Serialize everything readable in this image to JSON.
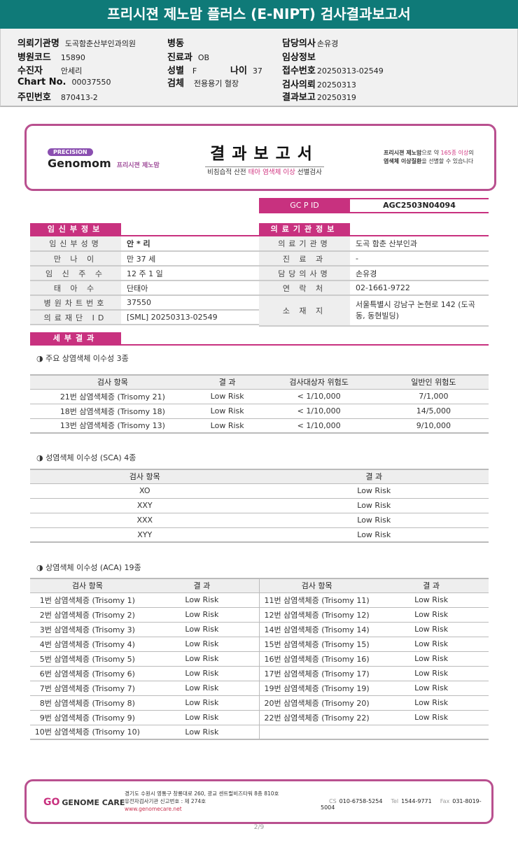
{
  "title": "프리시젼 제노맘 플러스 (E-NIPT) 검사결과보고서",
  "info": {
    "institution": {
      "label": "의뢰기관명",
      "value": "도곡함춘산부인과의원"
    },
    "hospital_code": {
      "label": "병원코드",
      "value": "15890"
    },
    "patient": {
      "label": "수진자",
      "value": "안세리"
    },
    "chart_no": {
      "label": "Chart No.",
      "value": "00037550"
    },
    "resident_no": {
      "label": "주민번호",
      "value": "870413-2"
    },
    "ward": {
      "label": "병동",
      "value": ""
    },
    "department": {
      "label": "진료과",
      "value": "OB"
    },
    "sex": {
      "label": "성별",
      "value": "F"
    },
    "age": {
      "label": "나이",
      "value": "37"
    },
    "specimen": {
      "label": "검체",
      "value": "전용용기 혈장"
    },
    "doctor": {
      "label": "담당의사",
      "value": "손유경"
    },
    "clinical": {
      "label": "임상정보",
      "value": ""
    },
    "receipt_no": {
      "label": "접수번호",
      "value": "20250313-02549"
    },
    "request_date": {
      "label": "검사의뢰",
      "value": "20250313"
    },
    "report_date": {
      "label": "결과보고",
      "value": "20250319"
    }
  },
  "banner": {
    "precision": "PRECISION",
    "brand": "Genomom",
    "brand_kr": "프리시젼 제노맘",
    "title": "결과보고서",
    "subtitle_pre": "비침습적 산전 ",
    "subtitle_em": "태아 염색체 이상",
    "subtitle_post": " 선별검사",
    "note_a": "프리시젼 제노맘",
    "note_b": "으로 약 ",
    "note_c": "165종 이상",
    "note_d": "의",
    "note_e": "염색체 이상질환",
    "note_f": "을 선별할 수 있습니다"
  },
  "gcpid": {
    "label": "GC P ID",
    "value": "AGC2503N04094"
  },
  "pregnant": {
    "header": "임신부정보",
    "rows": [
      {
        "k": "임신부성명",
        "v": "안 * 리"
      },
      {
        "k": "만 나 이",
        "v": "만 37 세"
      },
      {
        "k": "임 신 주 수",
        "v": "12 주 1 일"
      },
      {
        "k": "태 아 수",
        "v": "단태아"
      },
      {
        "k": "병원차트번호",
        "v": "37550"
      },
      {
        "k": "의료재단 ID",
        "v": "[SML] 20250313-02549"
      }
    ]
  },
  "medical": {
    "header": "의료기관정보",
    "rows": [
      {
        "k": "의료기관명",
        "v": "도곡 함춘 산부인과"
      },
      {
        "k": "진 료 과",
        "v": "-"
      },
      {
        "k": "담당의사명",
        "v": "손유경"
      },
      {
        "k": "연 락 처",
        "v": "02-1661-9722"
      },
      {
        "k": "소 재 지",
        "v": "서울특별시 강남구 논현로 142 (도곡동, 동현빌딩)"
      }
    ]
  },
  "detail_header": "세부결과",
  "major": {
    "title": "◑ 주요 상염색체 이수성 3종",
    "headers": [
      "검사 항목",
      "결 과",
      "검사대상자 위험도",
      "일반인 위험도"
    ],
    "rows": [
      [
        "21번 삼염색체증 (Trisomy 21)",
        "Low Risk",
        "< 1/10,000",
        "7/1,000"
      ],
      [
        "18번 삼염색체증 (Trisomy 18)",
        "Low Risk",
        "< 1/10,000",
        "14/5,000"
      ],
      [
        "13번 삼염색체증 (Trisomy 13)",
        "Low Risk",
        "< 1/10,000",
        "9/10,000"
      ]
    ]
  },
  "sca": {
    "title": "◑ 성염색체 이수성 (SCA) 4종",
    "headers": [
      "검사 항목",
      "결 과"
    ],
    "rows": [
      [
        "XO",
        "Low Risk"
      ],
      [
        "XXY",
        "Low Risk"
      ],
      [
        "XXX",
        "Low Risk"
      ],
      [
        "XYY",
        "Low Risk"
      ]
    ]
  },
  "aca": {
    "title": "◑ 상염색체 이수성 (ACA) 19종",
    "headers": [
      "검사 항목",
      "결 과",
      "검사 항목",
      "결 과"
    ],
    "rows": [
      [
        "1번 삼염색체증 (Trisomy 1)",
        "Low Risk",
        "11번 삼염색체증 (Trisomy 11)",
        "Low Risk"
      ],
      [
        "2번 삼염색체증 (Trisomy 2)",
        "Low Risk",
        "12번 삼염색체증 (Trisomy 12)",
        "Low Risk"
      ],
      [
        "3번 삼염색체증 (Trisomy 3)",
        "Low Risk",
        "14번 삼염색체증 (Trisomy 14)",
        "Low Risk"
      ],
      [
        "4번 삼염색체증 (Trisomy 4)",
        "Low Risk",
        "15번 삼염색체증 (Trisomy 15)",
        "Low Risk"
      ],
      [
        "5번 삼염색체증 (Trisomy 5)",
        "Low Risk",
        "16번 삼염색체증 (Trisomy 16)",
        "Low Risk"
      ],
      [
        "6번 삼염색체증 (Trisomy 6)",
        "Low Risk",
        "17번 삼염색체증 (Trisomy 17)",
        "Low Risk"
      ],
      [
        "7번 삼염색체증 (Trisomy 7)",
        "Low Risk",
        "19번 삼염색체증 (Trisomy 19)",
        "Low Risk"
      ],
      [
        "8번 삼염색체증 (Trisomy 8)",
        "Low Risk",
        "20번 삼염색체증 (Trisomy 20)",
        "Low Risk"
      ],
      [
        "9번 삼염색체증 (Trisomy 9)",
        "Low Risk",
        "22번 삼염색체증 (Trisomy 22)",
        "Low Risk"
      ],
      [
        "10번 삼염색체증 (Trisomy 10)",
        "Low Risk",
        "",
        ""
      ]
    ]
  },
  "footer": {
    "logo": "GENOME CARE",
    "address": "경기도 수원시 영통구 창룡대로 260, 광교 센트럴비즈타워 8층 810호",
    "license": "유전자검사기관 신고번호 : 제 274호",
    "website": "www.genomecare.net",
    "cs_label": "CS",
    "cs": "010-6758-5254",
    "tel_label": "Tel",
    "tel": "1544-9771",
    "fax_label": "Fax",
    "fax": "031-8019-5004"
  },
  "page": "2/9",
  "colors": {
    "header": "#0f7a78",
    "accent": "#c8317f",
    "border": "#b9508f"
  }
}
